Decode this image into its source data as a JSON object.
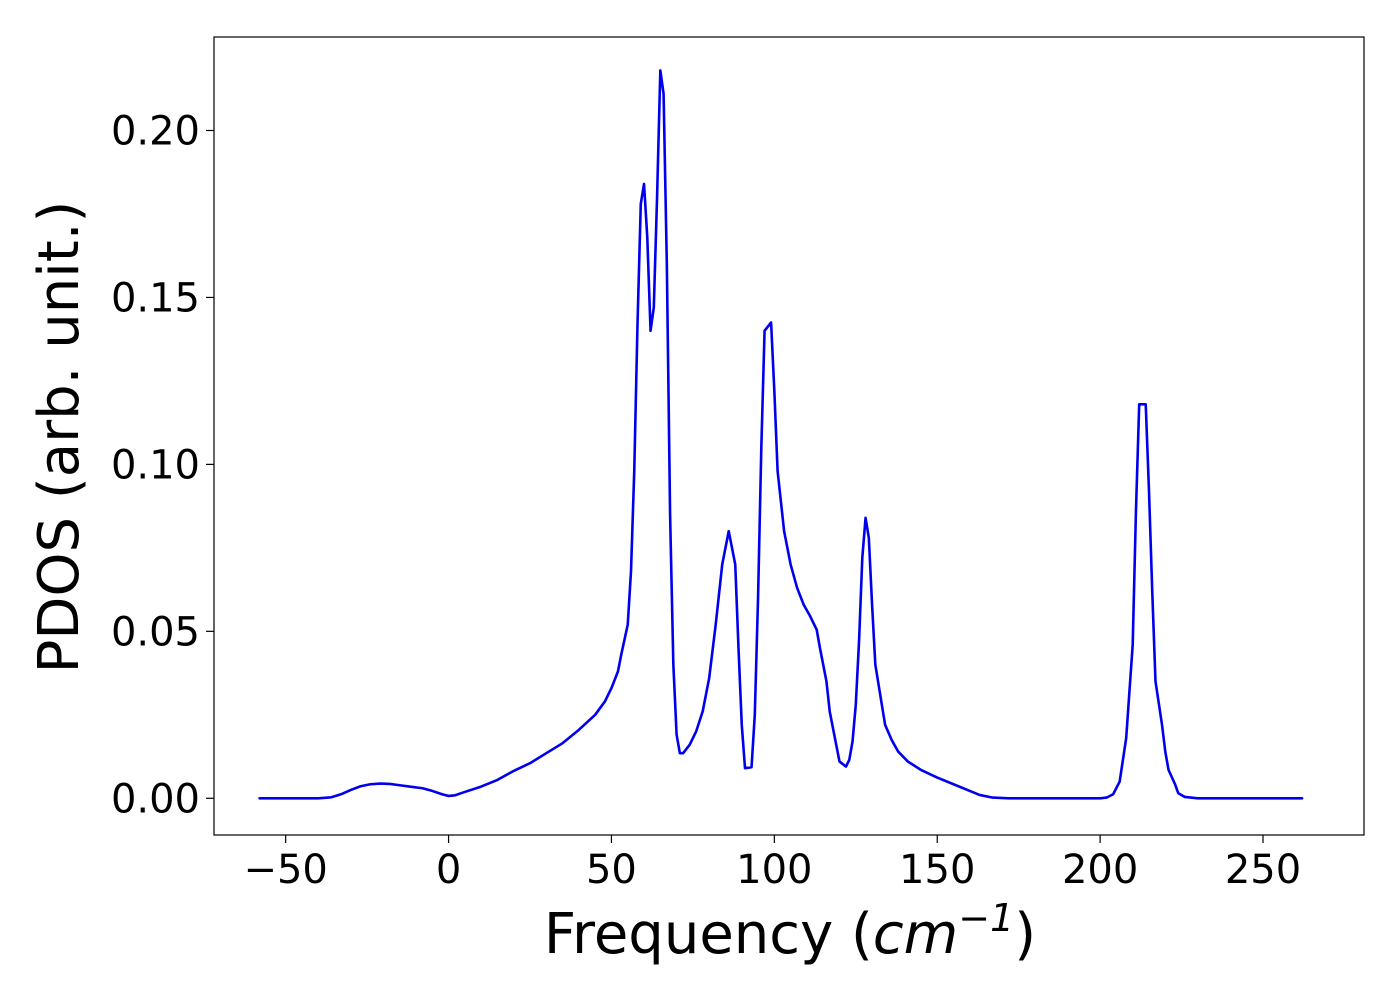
{
  "chart_data": {
    "type": "line",
    "title": "",
    "xlabel_prefix": "Frequency (",
    "xlabel_unit": "cm",
    "xlabel_exp": "−1",
    "xlabel_suffix": ")",
    "ylabel": "PDOS (arb. unit.)",
    "xlim": [
      -72,
      281
    ],
    "ylim": [
      -0.011,
      0.228
    ],
    "x_ticks": [
      -50,
      0,
      50,
      100,
      150,
      200,
      250
    ],
    "x_tick_labels": [
      "−50",
      "0",
      "50",
      "100",
      "150",
      "200",
      "250"
    ],
    "y_ticks": [
      0.0,
      0.05,
      0.1,
      0.15,
      0.2
    ],
    "y_tick_labels": [
      "0.00",
      "0.05",
      "0.10",
      "0.15",
      "0.20"
    ],
    "grid": false,
    "legend": "none",
    "series": [
      {
        "color": "#0000ee",
        "points": [
          [
            -58,
            0.0
          ],
          [
            -40,
            0.0
          ],
          [
            -36,
            0.0003
          ],
          [
            -33,
            0.0012
          ],
          [
            -30,
            0.0025
          ],
          [
            -27,
            0.0036
          ],
          [
            -24,
            0.0042
          ],
          [
            -21,
            0.0044
          ],
          [
            -18,
            0.0043
          ],
          [
            -15,
            0.0039
          ],
          [
            -12,
            0.0035
          ],
          [
            -8,
            0.003
          ],
          [
            -5,
            0.0022
          ],
          [
            -2,
            0.0012
          ],
          [
            0,
            0.0007
          ],
          [
            2,
            0.0009
          ],
          [
            5,
            0.0019
          ],
          [
            10,
            0.0035
          ],
          [
            15,
            0.0055
          ],
          [
            20,
            0.0082
          ],
          [
            25,
            0.0105
          ],
          [
            30,
            0.0135
          ],
          [
            35,
            0.0165
          ],
          [
            40,
            0.0205
          ],
          [
            45,
            0.025
          ],
          [
            48,
            0.029
          ],
          [
            50,
            0.033
          ],
          [
            52,
            0.038
          ],
          [
            53,
            0.043
          ],
          [
            55,
            0.052
          ],
          [
            56,
            0.068
          ],
          [
            57,
            0.098
          ],
          [
            58,
            0.142
          ],
          [
            59,
            0.178
          ],
          [
            60,
            0.184
          ],
          [
            61,
            0.168
          ],
          [
            62,
            0.14
          ],
          [
            63,
            0.147
          ],
          [
            64,
            0.18
          ],
          [
            65,
            0.218
          ],
          [
            66,
            0.211
          ],
          [
            67,
            0.16
          ],
          [
            68,
            0.085
          ],
          [
            69,
            0.04
          ],
          [
            70,
            0.019
          ],
          [
            71,
            0.0135
          ],
          [
            72,
            0.0135
          ],
          [
            74,
            0.016
          ],
          [
            76,
            0.02
          ],
          [
            78,
            0.026
          ],
          [
            80,
            0.036
          ],
          [
            82,
            0.052
          ],
          [
            84,
            0.07
          ],
          [
            86,
            0.08
          ],
          [
            88,
            0.07
          ],
          [
            89,
            0.045
          ],
          [
            90,
            0.022
          ],
          [
            91,
            0.009
          ],
          [
            93,
            0.0093
          ],
          [
            94,
            0.025
          ],
          [
            95,
            0.06
          ],
          [
            96,
            0.105
          ],
          [
            97,
            0.14
          ],
          [
            99,
            0.1425
          ],
          [
            100,
            0.122
          ],
          [
            101,
            0.098
          ],
          [
            103,
            0.08
          ],
          [
            105,
            0.07
          ],
          [
            107,
            0.063
          ],
          [
            109,
            0.058
          ],
          [
            111,
            0.0545
          ],
          [
            113,
            0.0505
          ],
          [
            114,
            0.045
          ],
          [
            116,
            0.035
          ],
          [
            117,
            0.026
          ],
          [
            119,
            0.016
          ],
          [
            120,
            0.011
          ],
          [
            122,
            0.0095
          ],
          [
            123,
            0.0115
          ],
          [
            124,
            0.017
          ],
          [
            125,
            0.028
          ],
          [
            126,
            0.047
          ],
          [
            127,
            0.072
          ],
          [
            128,
            0.084
          ],
          [
            129,
            0.078
          ],
          [
            130,
            0.058
          ],
          [
            131,
            0.04
          ],
          [
            133,
            0.028
          ],
          [
            134,
            0.022
          ],
          [
            136,
            0.0175
          ],
          [
            138,
            0.014
          ],
          [
            141,
            0.011
          ],
          [
            145,
            0.0085
          ],
          [
            150,
            0.0062
          ],
          [
            155,
            0.0042
          ],
          [
            160,
            0.0022
          ],
          [
            163,
            0.001
          ],
          [
            167,
            0.0002
          ],
          [
            172,
            0.0
          ],
          [
            200,
            0.0
          ],
          [
            202,
            0.0002
          ],
          [
            204,
            0.0012
          ],
          [
            206,
            0.005
          ],
          [
            208,
            0.018
          ],
          [
            210,
            0.046
          ],
          [
            211,
            0.086
          ],
          [
            212,
            0.118
          ],
          [
            214,
            0.118
          ],
          [
            215,
            0.092
          ],
          [
            216,
            0.062
          ],
          [
            217,
            0.035
          ],
          [
            219,
            0.022
          ],
          [
            220,
            0.014
          ],
          [
            221,
            0.0085
          ],
          [
            223,
            0.0042
          ],
          [
            224,
            0.0015
          ],
          [
            226,
            0.0004
          ],
          [
            230,
            0.0
          ],
          [
            262,
            0.0
          ]
        ]
      }
    ]
  }
}
